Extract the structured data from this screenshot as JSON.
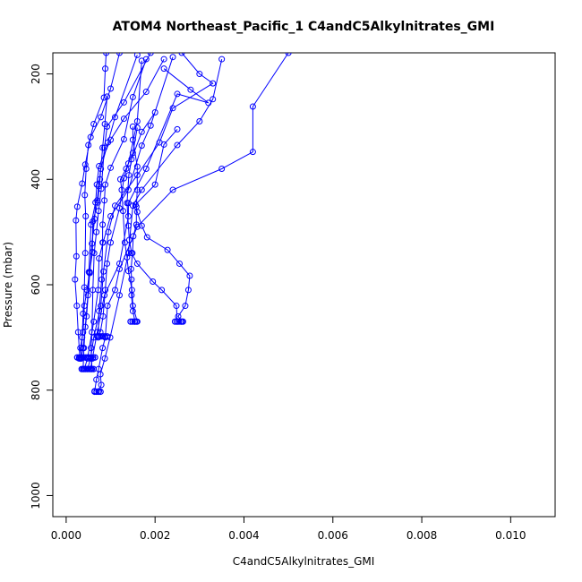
{
  "chart_data": {
    "type": "line",
    "title": "ATOM4 Northeast_Pacific_1 C4andC5Alkylnitrates_GMI",
    "xlabel": "C4andC5Alkylnitrates_GMI",
    "ylabel": "Pressure (mbar)",
    "xlim": [
      -0.0003,
      0.011
    ],
    "ylim": [
      1040,
      160
    ],
    "y_reversed": true,
    "grid": false,
    "x_ticks": [
      0.0,
      0.002,
      0.004,
      0.006,
      0.008,
      0.01
    ],
    "x_tick_labels": [
      "0.000",
      "0.002",
      "0.004",
      "0.006",
      "0.008",
      "0.010"
    ],
    "y_ticks": [
      200,
      400,
      600,
      800,
      1000
    ],
    "y_tick_labels": [
      "200",
      "400",
      "600",
      "800",
      "1000"
    ],
    "series_color": "#0000ff",
    "series": [
      {
        "points": [
          [
            0.00064,
            802
          ],
          [
            0.00068,
            780
          ],
          [
            0.00073,
            760
          ],
          [
            0.00082,
            720
          ],
          [
            0.00088,
            700
          ],
          [
            0.00093,
            640
          ],
          [
            0.0011,
            610
          ],
          [
            0.0012,
            570
          ],
          [
            0.0016,
            490
          ],
          [
            0.0024,
            420
          ],
          [
            0.0035,
            380
          ],
          [
            0.0042,
            348
          ],
          [
            0.0042,
            262
          ],
          [
            0.005,
            160
          ]
        ]
      },
      {
        "points": [
          [
            0.00074,
            802
          ],
          [
            0.00079,
            790
          ],
          [
            0.00077,
            770
          ],
          [
            0.00087,
            740
          ],
          [
            0.00099,
            700
          ],
          [
            0.0012,
            620
          ],
          [
            0.0014,
            540
          ],
          [
            0.0015,
            450
          ],
          [
            0.0017,
            420
          ],
          [
            0.0025,
            335
          ],
          [
            0.003,
            290
          ],
          [
            0.0033,
            248
          ],
          [
            0.0035,
            172
          ]
        ]
      },
      {
        "points": [
          [
            0.00048,
            760
          ],
          [
            0.00055,
            740
          ],
          [
            0.00062,
            700
          ],
          [
            0.00078,
            640
          ],
          [
            0.00084,
            575
          ],
          [
            0.00095,
            500
          ],
          [
            0.0011,
            450
          ],
          [
            0.0016,
            392
          ],
          [
            0.0021,
            330
          ],
          [
            0.0024,
            265
          ],
          [
            0.0033,
            218
          ],
          [
            0.003,
            200
          ],
          [
            0.0026,
            160
          ]
        ]
      },
      {
        "points": [
          [
            0.00055,
            760
          ],
          [
            0.00059,
            740
          ],
          [
            0.0007,
            690
          ],
          [
            0.00086,
            620
          ],
          [
            0.0012,
            560
          ],
          [
            0.0014,
            470
          ],
          [
            0.0014,
            445
          ],
          [
            0.0018,
            380
          ],
          [
            0.0025,
            238
          ],
          [
            0.0032,
            255
          ],
          [
            0.0028,
            230
          ],
          [
            0.0022,
            190
          ]
        ]
      },
      {
        "points": [
          [
            0.00033,
            740
          ],
          [
            0.00036,
            700
          ],
          [
            0.00038,
            655
          ],
          [
            0.00041,
            605
          ],
          [
            0.00043,
            540
          ],
          [
            0.00044,
            470
          ],
          [
            0.00042,
            430
          ],
          [
            0.00045,
            380
          ],
          [
            0.0005,
            335
          ],
          [
            0.00062,
            295
          ],
          [
            0.00085,
            245
          ],
          [
            0.00088,
            190
          ],
          [
            0.0009,
            160
          ]
        ]
      },
      {
        "points": [
          [
            0.00031,
            740
          ],
          [
            0.00027,
            690
          ],
          [
            0.00024,
            640
          ],
          [
            0.0002,
            590
          ],
          [
            0.00023,
            546
          ],
          [
            0.00022,
            478
          ],
          [
            0.00025,
            452
          ],
          [
            0.00036,
            408
          ],
          [
            0.00043,
            372
          ],
          [
            0.00055,
            320
          ],
          [
            0.00078,
            282
          ],
          [
            0.001,
            228
          ],
          [
            0.0012,
            160
          ]
        ]
      },
      {
        "points": [
          [
            0.00034,
            740
          ],
          [
            0.00038,
            720
          ],
          [
            0.00046,
            660
          ],
          [
            0.00053,
            578
          ],
          [
            0.00058,
            522
          ],
          [
            0.00064,
            475
          ],
          [
            0.00069,
            410
          ],
          [
            0.00074,
            375
          ],
          [
            0.001,
            325
          ],
          [
            0.0013,
            285
          ],
          [
            0.0018,
            234
          ],
          [
            0.0022,
            172
          ]
        ]
      },
      {
        "points": [
          [
            0.00041,
            760
          ],
          [
            0.00048,
            740
          ],
          [
            0.00062,
            670
          ],
          [
            0.00072,
            610
          ],
          [
            0.00074,
            550
          ],
          [
            0.00083,
            520
          ],
          [
            0.001,
            470
          ],
          [
            0.0014,
            420
          ],
          [
            0.0017,
            336
          ],
          [
            0.0019,
            298
          ],
          [
            0.0024,
            168
          ]
        ]
      },
      {
        "points": [
          [
            0.00077,
            690
          ],
          [
            0.00083,
            660
          ],
          [
            0.00088,
            610
          ],
          [
            0.00092,
            560
          ],
          [
            0.001,
            520
          ],
          [
            0.0012,
            455
          ],
          [
            0.0013,
            398
          ],
          [
            0.0014,
            370
          ],
          [
            0.0016,
            290
          ],
          [
            0.0017,
            175
          ]
        ]
      },
      {
        "points": [
          [
            0.00072,
            700
          ],
          [
            0.00074,
            650
          ],
          [
            0.0008,
            590
          ],
          [
            0.00082,
            520
          ],
          [
            0.00082,
            486
          ],
          [
            0.00086,
            440
          ],
          [
            0.00088,
            410
          ],
          [
            0.001,
            378
          ],
          [
            0.0013,
            324
          ],
          [
            0.0015,
            244
          ],
          [
            0.0018,
            172
          ]
        ]
      },
      {
        "points": [
          [
            0.00058,
            760
          ],
          [
            0.00056,
            720
          ],
          [
            0.00058,
            690
          ],
          [
            0.0006,
            610
          ],
          [
            0.00063,
            540
          ],
          [
            0.00068,
            500
          ],
          [
            0.00073,
            460
          ],
          [
            0.00079,
            418
          ],
          [
            0.00086,
            340
          ],
          [
            0.00092,
            300
          ],
          [
            0.0013,
            254
          ],
          [
            0.0019,
            160
          ]
        ]
      },
      {
        "points": [
          [
            0.00038,
            760
          ],
          [
            0.0004,
            720
          ],
          [
            0.00043,
            680
          ],
          [
            0.00049,
            620
          ],
          [
            0.00051,
            576
          ],
          [
            0.00056,
            486
          ],
          [
            0.00066,
            444
          ],
          [
            0.0007,
            440
          ],
          [
            0.00073,
            413
          ],
          [
            0.00078,
            380
          ],
          [
            0.00094,
            330
          ],
          [
            0.0011,
            282
          ],
          [
            0.0016,
            164
          ]
        ]
      },
      {
        "points": [
          [
            0.00029,
            740
          ],
          [
            0.00032,
            720
          ],
          [
            0.00038,
            690
          ],
          [
            0.00041,
            640
          ],
          [
            0.00047,
            610
          ],
          [
            0.00053,
            576
          ],
          [
            0.00059,
            538
          ],
          [
            0.0006,
            480
          ],
          [
            0.00071,
            444
          ],
          [
            0.00076,
            400
          ],
          [
            0.00082,
            340
          ],
          [
            0.00087,
            295
          ],
          [
            0.00092,
            243
          ]
        ]
      },
      {
        "points": [
          [
            0.00155,
            670
          ],
          [
            0.0015,
            650
          ],
          [
            0.00147,
            620
          ],
          [
            0.00147,
            590
          ],
          [
            0.00146,
            570
          ],
          [
            0.00149,
            540
          ],
          [
            0.00151,
            508
          ],
          [
            0.00158,
            486
          ],
          [
            0.00158,
            452
          ],
          [
            0.0016,
            420
          ],
          [
            0.0016,
            376
          ],
          [
            0.0015,
            325
          ],
          [
            0.0015,
            300
          ]
        ]
      },
      {
        "points": [
          [
            0.0016,
            670
          ],
          [
            0.0015,
            640
          ],
          [
            0.00148,
            610
          ],
          [
            0.0014,
            574
          ],
          [
            0.00137,
            548
          ],
          [
            0.00132,
            520
          ],
          [
            0.00128,
            460
          ],
          [
            0.00125,
            420
          ],
          [
            0.00122,
            400
          ],
          [
            0.00135,
            380
          ],
          [
            0.0015,
            350
          ],
          [
            0.0016,
            302
          ]
        ]
      },
      {
        "points": [
          [
            0.0025,
            670
          ],
          [
            0.00248,
            640
          ],
          [
            0.00215,
            610
          ],
          [
            0.00195,
            594
          ],
          [
            0.0016,
            560
          ],
          [
            0.00147,
            540
          ],
          [
            0.00142,
            515
          ],
          [
            0.0014,
            488
          ],
          [
            0.00137,
            445
          ],
          [
            0.00141,
            392
          ],
          [
            0.00147,
            362
          ],
          [
            0.0017,
            310
          ],
          [
            0.002,
            273
          ]
        ]
      },
      {
        "points": [
          [
            0.0026,
            670
          ],
          [
            0.00252,
            660
          ],
          [
            0.00268,
            640
          ],
          [
            0.00275,
            610
          ],
          [
            0.00278,
            583
          ],
          [
            0.00255,
            560
          ],
          [
            0.00228,
            534
          ],
          [
            0.00182,
            510
          ],
          [
            0.0017,
            488
          ],
          [
            0.0016,
            462
          ],
          [
            0.00156,
            448
          ],
          [
            0.002,
            410
          ],
          [
            0.0022,
            334
          ],
          [
            0.0025,
            305
          ]
        ]
      }
    ],
    "clusters": [
      {
        "x_range": [
          0.00025,
          0.00068
        ],
        "y": 738
      },
      {
        "x_range": [
          0.0007,
          0.00095
        ],
        "y": 698
      },
      {
        "x_range": [
          0.00035,
          0.00065
        ],
        "y": 760
      },
      {
        "x_range": [
          0.00064,
          0.00078
        ],
        "y": 803
      },
      {
        "x_range": [
          0.00145,
          0.00162
        ],
        "y": 670
      },
      {
        "x_range": [
          0.00245,
          0.00265
        ],
        "y": 670
      }
    ]
  }
}
